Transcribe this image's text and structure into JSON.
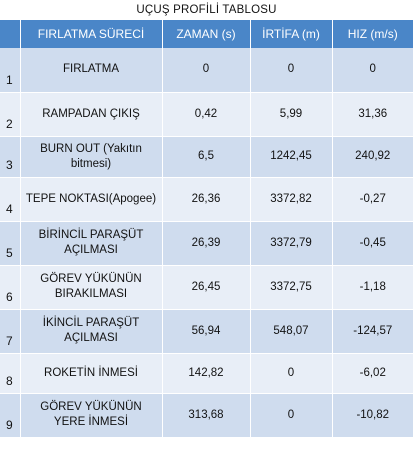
{
  "title": "UÇUŞ PROFİLİ TABLOSU",
  "columns": [
    "",
    "FIRLATMA SÜRECİ",
    "ZAMAN (s)",
    "İRTİFA (m)",
    "HIZ (m/s)"
  ],
  "rows": [
    {
      "index": "1",
      "phase": "FIRLATMA",
      "time": "0",
      "altitude": "0",
      "speed": "0"
    },
    {
      "index": "2",
      "phase": "RAMPADAN ÇIKIŞ",
      "time": "0,42",
      "altitude": "5,99",
      "speed": "31,36"
    },
    {
      "index": "3",
      "phase": "BURN OUT (Yakıtın bitmesi)",
      "time": "6,5",
      "altitude": "1242,45",
      "speed": "240,92"
    },
    {
      "index": "4",
      "phase": "TEPE NOKTASI(Apogee)",
      "time": "26,36",
      "altitude": "3372,82",
      "speed": "-0,27"
    },
    {
      "index": "5",
      "phase": "BİRİNCİL PARAŞÜT AÇILMASI",
      "time": "26,39",
      "altitude": "3372,79",
      "speed": "-0,45"
    },
    {
      "index": "6",
      "phase": "GÖREV YÜKÜNÜN BIRAKILMASI",
      "time": "26,45",
      "altitude": "3372,75",
      "speed": "-1,18"
    },
    {
      "index": "7",
      "phase": "İKİNCİL PARAŞÜT AÇILMASI",
      "time": "56,94",
      "altitude": "548,07",
      "speed": "-124,57"
    },
    {
      "index": "8",
      "phase": "ROKETİN İNMESİ",
      "time": "142,82",
      "altitude": "0",
      "speed": "-6,02"
    },
    {
      "index": "9",
      "phase": "GÖREV YÜKÜNÜN YERE İNMESİ",
      "time": "313,68",
      "altitude": "0",
      "speed": "-10,82"
    }
  ],
  "colors": {
    "header": "#4a86c8",
    "row_odd": "#cfdcee",
    "row_even": "#e8eef7"
  }
}
